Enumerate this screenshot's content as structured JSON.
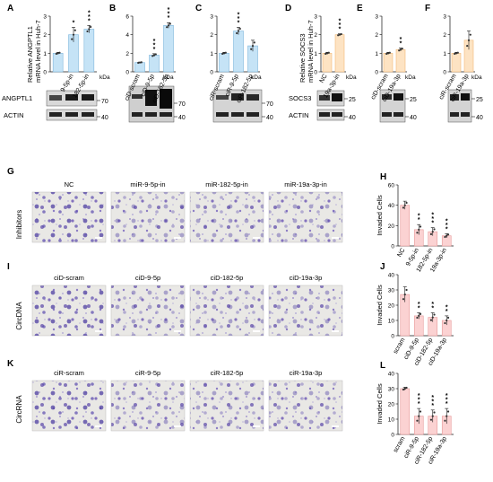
{
  "panel_letters": [
    "A",
    "B",
    "C",
    "D",
    "E",
    "F",
    "G",
    "H",
    "I",
    "J",
    "K",
    "L"
  ],
  "kda_label": "kDa",
  "top_row": {
    "ylabel_angptl1": [
      "Relative ANGPTL1",
      "mRNA level in Huh-7"
    ],
    "ylabel_socs3": [
      "Relative SOCS3",
      "mRNA level in Huh-7"
    ],
    "blot_labels": {
      "angptl1": "ANGPTL1",
      "socs3": "SOCS3",
      "actin": "ACTIN"
    },
    "mw_markers": {
      "70": "70",
      "40": "40",
      "25": "25"
    }
  },
  "row_labels": {
    "G": "Inhibitors",
    "I": "CircDNA",
    "K": "CircRNA"
  },
  "micro_titles": {
    "G": [
      "NC",
      "miR-9-5p-in",
      "miR-182-5p-in",
      "miR-19a-3p-in"
    ],
    "I": [
      "ciD-scram",
      "ciD-9-5p",
      "ciD-182-5p",
      "ciD-19a-3p"
    ],
    "K": [
      "ciR-scram",
      "ciR-9-5p",
      "ciR-182-5p",
      "ciR-19a-3p"
    ]
  },
  "invaded_label": "Invaded Cells",
  "colors": {
    "blue": "#c5e3f6",
    "blue_edge": "#7fb6dc",
    "orange": "#fde3c3",
    "orange_edge": "#f2b978",
    "pink": "#fbd2d2",
    "pink_edge": "#e79a9a",
    "cells": "#6a55b4",
    "bg": "#ecebe8"
  },
  "chart_data": [
    {
      "panel": "A",
      "type": "bar",
      "categories": [
        "",
        "9-5p-in",
        "182-5p-in"
      ],
      "values": [
        1.0,
        2.0,
        2.3
      ],
      "errors": [
        0.05,
        0.4,
        0.2
      ],
      "stars": [
        "",
        "*",
        "***"
      ],
      "ylim": [
        0,
        3
      ],
      "yticks": [
        0,
        1,
        2,
        3
      ],
      "color": "blue"
    },
    {
      "panel": "B",
      "type": "bar",
      "categories": [
        "ciD-scram",
        "ciD-9-5p",
        "ciD-182-5p"
      ],
      "values": [
        1.0,
        1.8,
        5.0
      ],
      "errors": [
        0.05,
        0.15,
        0.3
      ],
      "stars": [
        "",
        "***",
        "***"
      ],
      "ylim": [
        0,
        6
      ],
      "yticks": [
        0,
        2,
        4,
        6
      ],
      "color": "blue"
    },
    {
      "panel": "C",
      "type": "bar",
      "categories": [
        "ciR-scram",
        "ciR-9-5p",
        "ciR-182-5p"
      ],
      "values": [
        1.0,
        2.2,
        1.4
      ],
      "errors": [
        0.05,
        0.2,
        0.3
      ],
      "stars": [
        "",
        "***",
        ""
      ],
      "ylim": [
        0,
        3
      ],
      "yticks": [
        0,
        1,
        2,
        3
      ],
      "color": "blue"
    },
    {
      "panel": "D",
      "type": "bar",
      "categories": [
        "NC",
        "19a-3p-in"
      ],
      "values": [
        1.0,
        2.0
      ],
      "errors": [
        0.05,
        0.05
      ],
      "stars": [
        "",
        "***"
      ],
      "ylim": [
        0,
        3
      ],
      "yticks": [
        0,
        1,
        2,
        3
      ],
      "color": "orange"
    },
    {
      "panel": "E",
      "type": "bar",
      "categories": [
        "ciD-scram",
        "ciD-19a-3p"
      ],
      "values": [
        1.0,
        1.2
      ],
      "errors": [
        0.05,
        0.08
      ],
      "stars": [
        "",
        "**"
      ],
      "ylim": [
        0,
        3
      ],
      "yticks": [
        0,
        1,
        2,
        3
      ],
      "color": "orange"
    },
    {
      "panel": "F",
      "type": "bar",
      "categories": [
        "ciR-scram",
        "ciR-19a-3p"
      ],
      "values": [
        1.0,
        1.7
      ],
      "errors": [
        0.05,
        0.5
      ],
      "stars": [
        "",
        ""
      ],
      "ylim": [
        0,
        3
      ],
      "yticks": [
        0,
        1,
        2,
        3
      ],
      "color": "orange"
    },
    {
      "panel": "H",
      "type": "bar",
      "categories": [
        "NC",
        "9-5p-in",
        "182-5p-in",
        "19a-3p-in"
      ],
      "values": [
        40,
        16,
        14,
        10
      ],
      "errors": [
        4,
        5,
        4,
        2
      ],
      "stars": [
        "",
        "**",
        "***",
        "***"
      ],
      "ylim": [
        0,
        60
      ],
      "yticks": [
        0,
        20,
        40,
        60
      ],
      "color": "pink"
    },
    {
      "panel": "J",
      "type": "bar",
      "categories": [
        "scram",
        "ciD-9-5p",
        "ciD-182-5p",
        "ciD-19a-3p"
      ],
      "values": [
        27,
        13,
        12,
        10
      ],
      "errors": [
        5,
        2,
        3,
        3
      ],
      "stars": [
        "",
        "**",
        "**",
        "**"
      ],
      "ylim": [
        0,
        40
      ],
      "yticks": [
        0,
        10,
        20,
        30,
        40
      ],
      "color": "pink"
    },
    {
      "panel": "L",
      "type": "bar",
      "categories": [
        "scram",
        "ciR-9-5p",
        "ciR-182-5p",
        "ciR-19a-3p"
      ],
      "values": [
        30,
        12,
        12,
        12
      ],
      "errors": [
        1,
        5,
        4,
        5
      ],
      "stars": [
        "",
        "***",
        "***",
        "***"
      ],
      "ylim": [
        0,
        40
      ],
      "yticks": [
        0,
        10,
        20,
        30,
        40
      ],
      "color": "pink"
    }
  ]
}
